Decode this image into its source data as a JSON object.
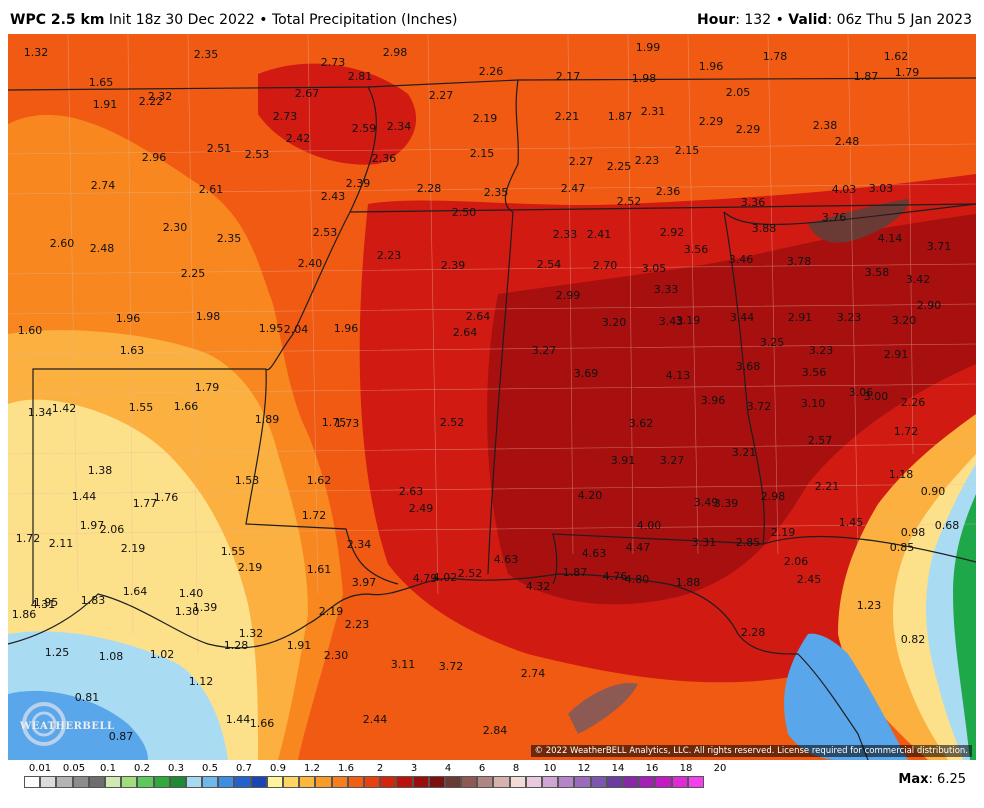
{
  "header": {
    "model": "WPC 2.5 km",
    "init": "Init 18z 30 Dec 2022",
    "product": "Total Precipitation (Inches)",
    "hour_label": "Hour",
    "hour": "132",
    "valid_label": "Valid",
    "valid": "06z Thu 5 Jan 2023"
  },
  "map": {
    "copyright": "© 2022 WeatherBELL Analytics, LLC. All rights reserved. License required for commercial distribution.",
    "logo_text": "WEATHERBELL",
    "labels": [
      "1.32",
      "2.35",
      "2.73",
      "2.98",
      "1.99",
      "1.62",
      "2.26",
      "2.81",
      "2.17",
      "1.98",
      "1.96",
      "1.78",
      "1.87",
      "1.79",
      "1.65",
      "2.27",
      "2.05",
      "2.22",
      "2.32",
      "1.91",
      "2.67",
      "2.73",
      "2.19",
      "2.21",
      "1.87",
      "2.31",
      "2.29",
      "2.29",
      "2.38",
      "2.59",
      "2.34",
      "2.42",
      "2.48",
      "2.51",
      "2.53",
      "2.96",
      "2.36",
      "2.15",
      "2.27",
      "2.25",
      "2.23",
      "2.15",
      "2.74",
      "2.61",
      "2.39",
      "2.43",
      "2.28",
      "2.35",
      "2.47",
      "2.52",
      "2.36",
      "4.03",
      "3.03",
      "3.36",
      "2.50",
      "3.76",
      "2.30",
      "2.53",
      "2.33",
      "2.41",
      "2.92",
      "3.88",
      "4.14",
      "2.35",
      "2.60",
      "2.48",
      "3.71",
      "3.56",
      "2.23",
      "3.46",
      "3.78",
      "2.40",
      "2.39",
      "2.54",
      "2.70",
      "3.05",
      "2.25",
      "3.58",
      "3.42",
      "3.33",
      "2.99",
      "2.90",
      "1.98",
      "1.96",
      "2.64",
      "3.20",
      "3.44",
      "2.91",
      "3.23",
      "3.20",
      "3.43",
      "3.19",
      "1.95",
      "2.04",
      "1.96",
      "2.64",
      "1.60",
      "3.25",
      "1.63",
      "3.27",
      "3.23",
      "2.91",
      "3.69",
      "3.68",
      "4.13",
      "3.56",
      "1.79",
      "1.34",
      "1.42",
      "1.55",
      "1.66",
      "3.96",
      "3.72",
      "3.10",
      "3.06",
      "3.00",
      "2.26",
      "1.89",
      "1.75",
      "1.73",
      "2.52",
      "3.62",
      "1.72",
      "2.57",
      "3.21",
      "3.91",
      "3.27",
      "1.38",
      "1.18",
      "1.53",
      "1.62",
      "2.21",
      "0.90",
      "4.20",
      "2.63",
      "2.98",
      "1.44",
      "1.77",
      "1.76",
      "3.49",
      "3.39",
      "2.49",
      "1.72",
      "1.45",
      "0.98",
      "0.68",
      "4.00",
      "1.97",
      "2.06",
      "2.19",
      "1.72",
      "2.11",
      "3.31",
      "2.85",
      "2.34",
      "0.85",
      "2.19",
      "4.63",
      "4.63",
      "4.47",
      "1.55",
      "2.06",
      "2.19",
      "1.61",
      "1.87",
      "4.76",
      "4.80",
      "4.79",
      "4.02",
      "2.52",
      "3.97",
      "2.45",
      "1.88",
      "4.32",
      "4.31",
      "1.64",
      "1.40",
      "1.83",
      "1.86",
      "1.95",
      "1.30",
      "1.39",
      "2.19",
      "1.23",
      "2.23",
      "2.28",
      "1.32",
      "1.28",
      "0.82",
      "1.25",
      "1.08",
      "1.02",
      "1.91",
      "2.30",
      "3.11",
      "3.72",
      "2.74",
      "1.12",
      "0.81",
      "1.44",
      "1.66",
      "2.44",
      "0.87",
      "2.84"
    ],
    "colors": {
      "dark_red": "#a80f0f",
      "red": "#d11a12",
      "red_orange": "#e8360f",
      "orange_red": "#f05a12",
      "orange": "#f7871e",
      "light_orange": "#fbb040",
      "yellow": "#fde08a",
      "pale": "#fdf0c0",
      "light_blue": "#a9dcf3",
      "blue": "#5aa6ea",
      "dark_blue": "#2a62d0",
      "green": "#1fa84a",
      "border": "#b9b0a6",
      "state_border": "#1e1e1e"
    }
  },
  "legend": {
    "ticks": [
      "0.01",
      "0.05",
      "0.1",
      "0.2",
      "0.3",
      "0.5",
      "0.7",
      "0.9",
      "1.2",
      "1.6",
      "2",
      "3",
      "4",
      "6",
      "8",
      "10",
      "12",
      "14",
      "16",
      "18",
      "20"
    ],
    "colors": [
      "#ffffff",
      "#dcdcdc",
      "#b4b4b4",
      "#8c8c8c",
      "#6e6e6e",
      "#cfe9b0",
      "#a3dc7a",
      "#5cc95a",
      "#2faa3a",
      "#1f8a36",
      "#a6d8f2",
      "#6fb8ec",
      "#3d8ee3",
      "#2162cf",
      "#1a46b4",
      "#fff49c",
      "#fed560",
      "#fcb73c",
      "#f99b27",
      "#f77e1b",
      "#f25f11",
      "#e8400e",
      "#d4240c",
      "#b9140b",
      "#9b0d0d",
      "#7e1010",
      "#6a3a34",
      "#8c5a52",
      "#b08780",
      "#d7b2ab",
      "#f3dad6",
      "#e8c9dd",
      "#cfa5d4",
      "#b585c8",
      "#9a6bbc",
      "#7f56ad",
      "#6a3e9f",
      "#8a27a8",
      "#a41fb3",
      "#c21bc4",
      "#df2ad6",
      "#f241ea"
    ],
    "max_label": "Max",
    "max_value": "6.25"
  }
}
